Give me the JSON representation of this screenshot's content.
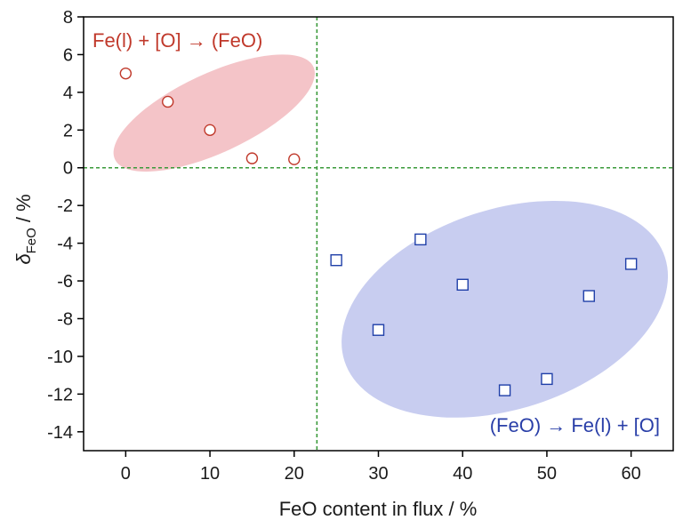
{
  "chart_data": {
    "type": "scatter",
    "xlabel": "FeO content in flux / %",
    "ylabel_main": "δ",
    "ylabel_sub": "FeO",
    "ylabel_tail": " / %",
    "xlim": [
      -5,
      65
    ],
    "ylim": [
      -15,
      8
    ],
    "xticks": [
      0,
      10,
      20,
      30,
      40,
      50,
      60
    ],
    "yticks": [
      8,
      6,
      4,
      2,
      0,
      -2,
      -4,
      -6,
      -8,
      -10,
      -12,
      -14
    ],
    "grid": false,
    "reference_lines": {
      "x": 22.7,
      "y": 0,
      "color": "#3a9a3a"
    },
    "series": [
      {
        "marker": "circle",
        "edge_color": "#c0392b",
        "points": [
          {
            "x": 0,
            "y": 5.0
          },
          {
            "x": 5,
            "y": 3.5
          },
          {
            "x": 10,
            "y": 2.0
          },
          {
            "x": 15,
            "y": 0.5
          },
          {
            "x": 20,
            "y": 0.45
          }
        ]
      },
      {
        "marker": "square",
        "edge_color": "#1f3fa8",
        "points": [
          {
            "x": 25,
            "y": -4.9
          },
          {
            "x": 30,
            "y": -8.6
          },
          {
            "x": 35,
            "y": -3.8
          },
          {
            "x": 40,
            "y": -6.2
          },
          {
            "x": 45,
            "y": -11.8
          },
          {
            "x": 50,
            "y": -11.2
          },
          {
            "x": 55,
            "y": -6.8
          },
          {
            "x": 60,
            "y": -5.1
          }
        ]
      }
    ],
    "regions": [
      {
        "color": "#f4c4c8",
        "center": {
          "x": 10.5,
          "y": 2.9
        },
        "rx": 13.0,
        "ry": 2.1,
        "angle_deg": -25
      },
      {
        "color": "#c8cdf0",
        "center": {
          "x": 45.0,
          "y": -7.5
        },
        "rx": 20.0,
        "ry": 5.3,
        "angle_deg": -18
      }
    ],
    "annotations": [
      {
        "text": "Fe(l) + [O] → (FeO)",
        "color": "#c0392b",
        "position": "top-left"
      },
      {
        "text": "(FeO) → Fe(l) + [O]",
        "color": "#2a3fa8",
        "position": "bottom-right"
      }
    ]
  }
}
